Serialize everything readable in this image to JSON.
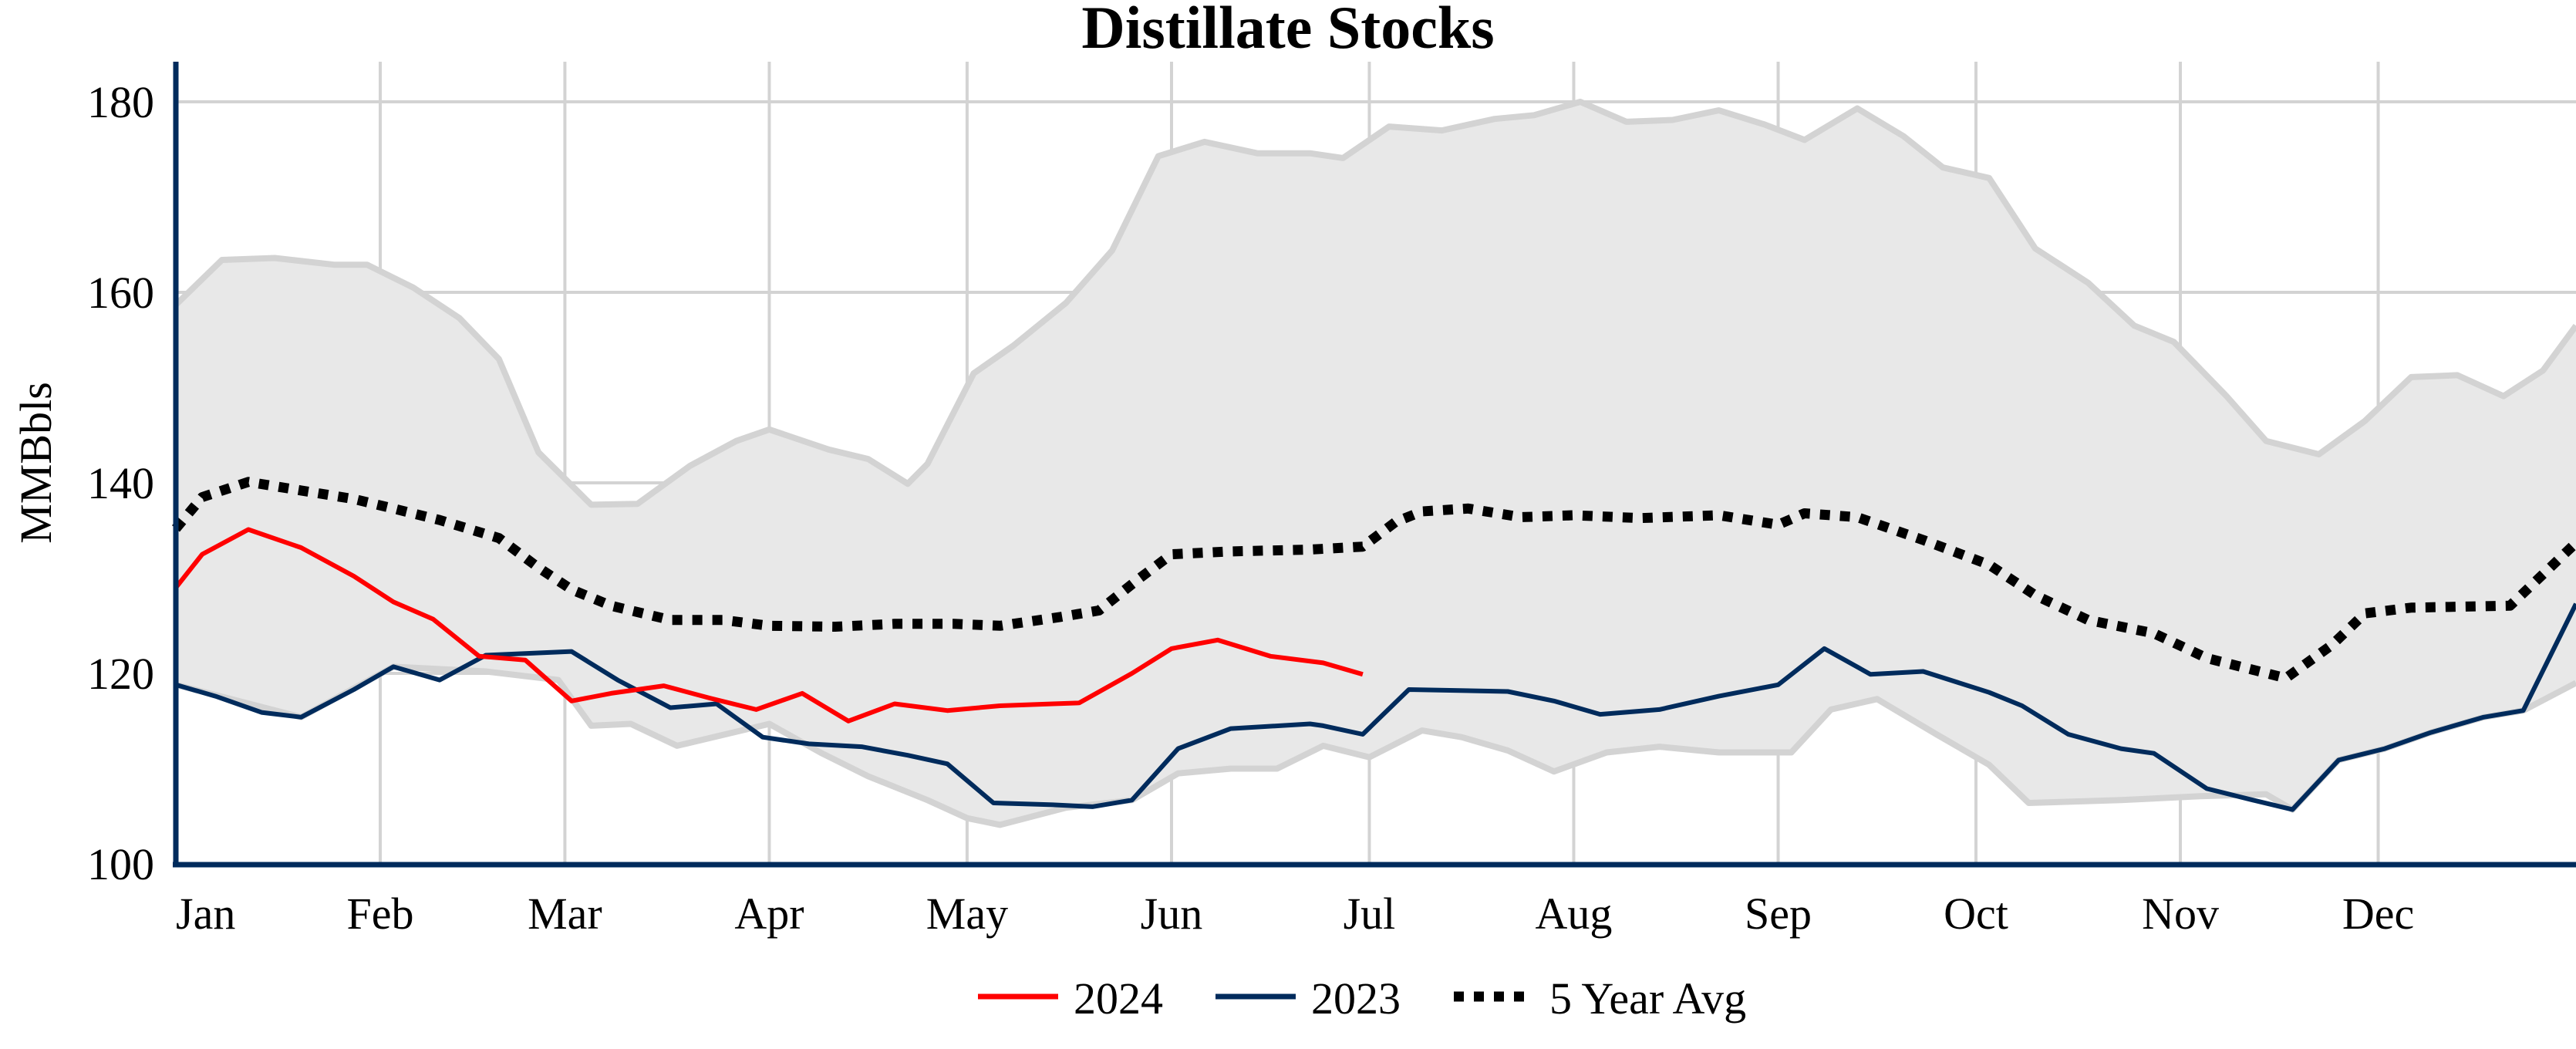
{
  "chart_data": {
    "type": "line",
    "title": "Distillate Stocks",
    "xlabel": "",
    "ylabel": "MMBbls",
    "xlim": [
      "01-01",
      "12-31"
    ],
    "ylim": [
      100,
      184
    ],
    "x_ticks": [
      {
        "date": "01-01",
        "label": "Jan"
      },
      {
        "date": "02-01",
        "label": "Feb"
      },
      {
        "date": "03-01",
        "label": "Mar"
      },
      {
        "date": "04-01",
        "label": "Apr"
      },
      {
        "date": "05-01",
        "label": "May"
      },
      {
        "date": "06-01",
        "label": "Jun"
      },
      {
        "date": "07-01",
        "label": "Jul"
      },
      {
        "date": "08-01",
        "label": "Aug"
      },
      {
        "date": "09-01",
        "label": "Sep"
      },
      {
        "date": "10-01",
        "label": "Oct"
      },
      {
        "date": "11-01",
        "label": "Nov"
      },
      {
        "date": "12-01",
        "label": "Dec"
      }
    ],
    "y_ticks": [
      100,
      120,
      140,
      160,
      180
    ],
    "grid": true,
    "legend": "bottom-center",
    "colors": {
      "2024": "#ff0000",
      "2023": "#002b5c",
      "avg": "#000000",
      "band_fill": "#e8e8e8",
      "band_edge": "#d3d3d3",
      "grid": "#d3d3d3",
      "axis": "#002b5c"
    },
    "range_band": {
      "upper": [
        [
          "01-01",
          158.7
        ],
        [
          "01-08",
          163.4
        ],
        [
          "01-16",
          163.6
        ],
        [
          "01-25",
          162.9
        ],
        [
          "01-30",
          162.9
        ],
        [
          "02-06",
          160.5
        ],
        [
          "02-13",
          157.3
        ],
        [
          "02-19",
          153.0
        ],
        [
          "02-25",
          143.2
        ],
        [
          "03-05",
          137.7
        ],
        [
          "03-12",
          137.8
        ],
        [
          "03-20",
          141.8
        ],
        [
          "03-27",
          144.4
        ],
        [
          "04-01",
          145.6
        ],
        [
          "04-10",
          143.5
        ],
        [
          "04-16",
          142.5
        ],
        [
          "04-22",
          139.9
        ],
        [
          "04-25",
          142.0
        ],
        [
          "05-02",
          151.5
        ],
        [
          "05-08",
          154.4
        ],
        [
          "05-16",
          158.9
        ],
        [
          "05-23",
          164.4
        ],
        [
          "05-30",
          174.3
        ],
        [
          "06-06",
          175.8
        ],
        [
          "06-14",
          174.6
        ],
        [
          "06-22",
          174.6
        ],
        [
          "06-27",
          174.1
        ],
        [
          "07-04",
          177.4
        ],
        [
          "07-12",
          177.0
        ],
        [
          "07-20",
          178.2
        ],
        [
          "07-26",
          178.6
        ],
        [
          "08-02",
          180.0
        ],
        [
          "08-09",
          177.9
        ],
        [
          "08-16",
          178.1
        ],
        [
          "08-23",
          179.1
        ],
        [
          "08-30",
          177.6
        ],
        [
          "09-05",
          176.0
        ],
        [
          "09-13",
          179.3
        ],
        [
          "09-20",
          176.4
        ],
        [
          "09-26",
          173.1
        ],
        [
          "10-03",
          172.0
        ],
        [
          "10-10",
          164.6
        ],
        [
          "10-18",
          161.0
        ],
        [
          "10-25",
          156.5
        ],
        [
          "10-31",
          154.8
        ],
        [
          "11-08",
          149.1
        ],
        [
          "11-14",
          144.4
        ],
        [
          "11-22",
          143.0
        ],
        [
          "11-29",
          146.5
        ],
        [
          "12-06",
          151.1
        ],
        [
          "12-13",
          151.3
        ],
        [
          "12-20",
          149.1
        ],
        [
          "12-26",
          151.8
        ],
        [
          "12-31",
          156.5
        ]
      ],
      "lower": [
        [
          "01-01",
          118.8
        ],
        [
          "01-20",
          115.4
        ],
        [
          "02-03",
          120.7
        ],
        [
          "02-17",
          120.2
        ],
        [
          "02-28",
          119.3
        ],
        [
          "03-05",
          114.5
        ],
        [
          "03-11",
          114.7
        ],
        [
          "03-18",
          112.4
        ],
        [
          "04-01",
          114.7
        ],
        [
          "04-09",
          111.6
        ],
        [
          "04-16",
          109.2
        ],
        [
          "04-25",
          106.7
        ],
        [
          "05-01",
          104.8
        ],
        [
          "05-06",
          104.1
        ],
        [
          "05-16",
          105.9
        ],
        [
          "05-26",
          106.7
        ],
        [
          "06-02",
          109.5
        ],
        [
          "06-10",
          110.0
        ],
        [
          "06-17",
          110.0
        ],
        [
          "06-24",
          112.4
        ],
        [
          "07-01",
          111.2
        ],
        [
          "07-09",
          114.0
        ],
        [
          "07-15",
          113.3
        ],
        [
          "07-22",
          111.9
        ],
        [
          "07-29",
          109.7
        ],
        [
          "08-06",
          111.7
        ],
        [
          "08-14",
          112.3
        ],
        [
          "08-23",
          111.7
        ],
        [
          "09-03",
          111.7
        ],
        [
          "09-09",
          116.2
        ],
        [
          "09-16",
          117.3
        ],
        [
          "09-25",
          113.6
        ],
        [
          "10-03",
          110.4
        ],
        [
          "10-09",
          106.4
        ],
        [
          "10-23",
          106.7
        ],
        [
          "11-04",
          107.1
        ],
        [
          "11-14",
          107.3
        ],
        [
          "11-18",
          105.7
        ],
        [
          "11-25",
          110.9
        ],
        [
          "12-02",
          112.1
        ],
        [
          "12-09",
          113.8
        ],
        [
          "12-17",
          115.4
        ],
        [
          "12-23",
          116.1
        ],
        [
          "12-31",
          119.0
        ]
      ]
    },
    "series": [
      {
        "name": "2024",
        "style": "solid",
        "points": [
          [
            "01-01",
            129.0
          ],
          [
            "01-05",
            132.5
          ],
          [
            "01-12",
            135.1
          ],
          [
            "01-20",
            133.2
          ],
          [
            "01-28",
            130.2
          ],
          [
            "02-03",
            127.5
          ],
          [
            "02-09",
            125.7
          ],
          [
            "02-16",
            121.8
          ],
          [
            "02-23",
            121.4
          ],
          [
            "03-02",
            117.1
          ],
          [
            "03-08",
            117.9
          ],
          [
            "03-16",
            118.7
          ],
          [
            "03-23",
            117.4
          ],
          [
            "03-30",
            116.2
          ],
          [
            "04-06",
            117.9
          ],
          [
            "04-13",
            115.0
          ],
          [
            "04-20",
            116.8
          ],
          [
            "04-28",
            116.1
          ],
          [
            "05-06",
            116.6
          ],
          [
            "05-14",
            116.8
          ],
          [
            "05-18",
            116.9
          ],
          [
            "05-26",
            120.0
          ],
          [
            "06-01",
            122.6
          ],
          [
            "06-08",
            123.5
          ],
          [
            "06-16",
            121.8
          ],
          [
            "06-24",
            121.1
          ],
          [
            "06-30",
            119.9
          ]
        ]
      },
      {
        "name": "2023",
        "style": "solid",
        "points": [
          [
            "01-01",
            118.8
          ],
          [
            "01-07",
            117.6
          ],
          [
            "01-14",
            115.9
          ],
          [
            "01-20",
            115.4
          ],
          [
            "01-28",
            118.3
          ],
          [
            "02-03",
            120.7
          ],
          [
            "02-10",
            119.3
          ],
          [
            "02-17",
            121.9
          ],
          [
            "03-02",
            122.3
          ],
          [
            "03-09",
            119.3
          ],
          [
            "03-17",
            116.4
          ],
          [
            "03-24",
            116.8
          ],
          [
            "03-31",
            113.3
          ],
          [
            "04-07",
            112.6
          ],
          [
            "04-15",
            112.3
          ],
          [
            "04-22",
            111.4
          ],
          [
            "04-28",
            110.5
          ],
          [
            "05-05",
            106.4
          ],
          [
            "05-14",
            106.2
          ],
          [
            "05-20",
            106.0
          ],
          [
            "05-26",
            106.7
          ],
          [
            "06-02",
            112.1
          ],
          [
            "06-10",
            114.2
          ],
          [
            "06-22",
            114.7
          ],
          [
            "06-24",
            114.5
          ],
          [
            "06-30",
            113.6
          ],
          [
            "07-07",
            118.3
          ],
          [
            "07-22",
            118.1
          ],
          [
            "07-29",
            117.1
          ],
          [
            "08-05",
            115.7
          ],
          [
            "08-14",
            116.2
          ],
          [
            "08-23",
            117.6
          ],
          [
            "09-01",
            118.8
          ],
          [
            "09-08",
            122.6
          ],
          [
            "09-15",
            119.9
          ],
          [
            "09-23",
            120.2
          ],
          [
            "10-03",
            118.0
          ],
          [
            "10-08",
            116.6
          ],
          [
            "10-15",
            113.6
          ],
          [
            "10-23",
            112.1
          ],
          [
            "10-28",
            111.6
          ],
          [
            "11-05",
            107.9
          ],
          [
            "11-12",
            106.7
          ],
          [
            "11-18",
            105.7
          ],
          [
            "11-25",
            110.9
          ],
          [
            "12-02",
            112.1
          ],
          [
            "12-09",
            113.8
          ],
          [
            "12-17",
            115.4
          ],
          [
            "12-23",
            116.1
          ],
          [
            "12-31",
            127.3
          ]
        ]
      },
      {
        "name": "5 Year Avg",
        "style": "dotted",
        "points": [
          [
            "01-01",
            135.2
          ],
          [
            "01-05",
            138.5
          ],
          [
            "01-12",
            140.1
          ],
          [
            "01-20",
            139.2
          ],
          [
            "01-28",
            138.3
          ],
          [
            "02-03",
            137.3
          ],
          [
            "02-10",
            136.1
          ],
          [
            "02-19",
            134.2
          ],
          [
            "02-25",
            131.1
          ],
          [
            "03-02",
            128.8
          ],
          [
            "03-08",
            127.1
          ],
          [
            "03-17",
            125.6
          ],
          [
            "03-25",
            125.6
          ],
          [
            "04-01",
            125.0
          ],
          [
            "04-11",
            124.9
          ],
          [
            "04-20",
            125.2
          ],
          [
            "04-29",
            125.2
          ],
          [
            "05-06",
            125.0
          ],
          [
            "05-15",
            125.9
          ],
          [
            "05-21",
            126.6
          ],
          [
            "05-27",
            129.9
          ],
          [
            "06-01",
            132.5
          ],
          [
            "06-10",
            132.8
          ],
          [
            "06-22",
            133.0
          ],
          [
            "06-30",
            133.3
          ],
          [
            "07-05",
            135.9
          ],
          [
            "07-09",
            137.0
          ],
          [
            "07-16",
            137.3
          ],
          [
            "07-24",
            136.4
          ],
          [
            "08-01",
            136.6
          ],
          [
            "08-11",
            136.3
          ],
          [
            "08-23",
            136.6
          ],
          [
            "09-01",
            135.6
          ],
          [
            "09-05",
            136.8
          ],
          [
            "09-13",
            136.4
          ],
          [
            "09-23",
            134.0
          ],
          [
            "10-03",
            131.4
          ],
          [
            "10-10",
            128.2
          ],
          [
            "10-18",
            125.6
          ],
          [
            "10-28",
            124.2
          ],
          [
            "11-05",
            121.6
          ],
          [
            "11-17",
            119.5
          ],
          [
            "11-24",
            123.0
          ],
          [
            "11-29",
            126.3
          ],
          [
            "12-06",
            126.9
          ],
          [
            "12-21",
            127.1
          ],
          [
            "12-31",
            133.7
          ]
        ]
      }
    ]
  }
}
